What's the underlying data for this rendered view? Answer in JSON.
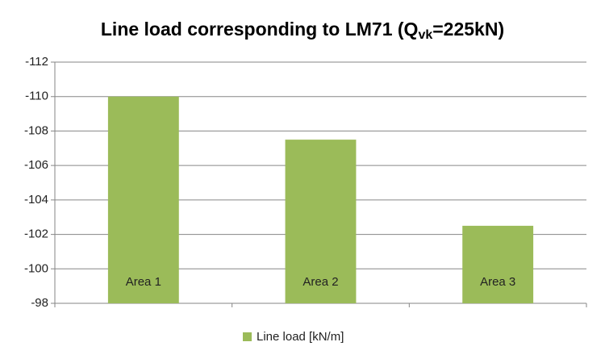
{
  "chart_data": {
    "type": "bar",
    "title": [
      "Line load corresponding  to LM71 (Q",
      "vk",
      "=225kN)"
    ],
    "categories": [
      "Area 1",
      "Area 2",
      "Area 3"
    ],
    "series": [
      {
        "name": "Line load [kN/m]",
        "color": "#9bbb59",
        "values": [
          -110,
          -107.5,
          -102.5
        ]
      }
    ],
    "ylim": [
      -98,
      -112
    ],
    "yticks": [
      -112,
      -110,
      -108,
      -106,
      -104,
      -102,
      -100,
      -98
    ],
    "grid": true,
    "legend": "bottom"
  }
}
